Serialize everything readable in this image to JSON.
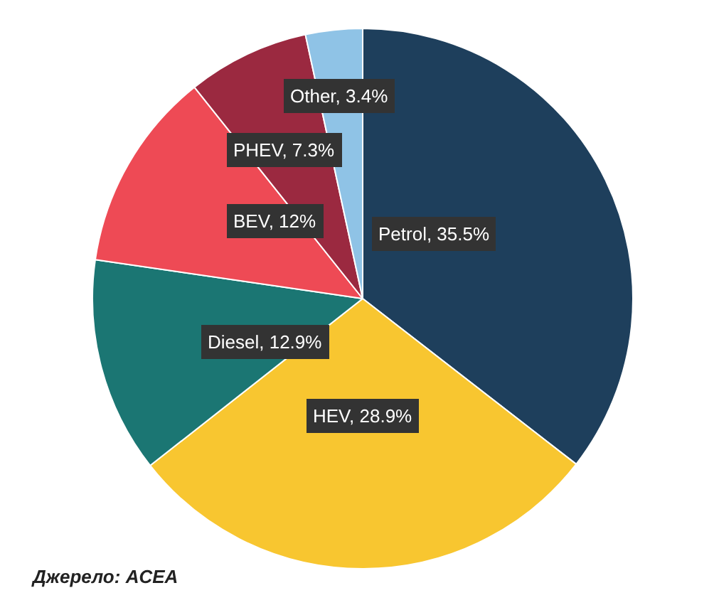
{
  "chart_data": {
    "type": "pie",
    "categories": [
      "Petrol",
      "HEV",
      "Diesel",
      "BEV",
      "PHEV",
      "Other"
    ],
    "values": [
      35.5,
      28.9,
      12.9,
      12,
      7.3,
      3.4
    ],
    "colors": [
      "#1e3f5c",
      "#f8c630",
      "#1b7673",
      "#ee4a55",
      "#9b2940",
      "#8fc3e6"
    ],
    "value_labels": [
      "35.5%",
      "28.9%",
      "12.9%",
      "12%",
      "7.3%",
      "3.4%"
    ],
    "legend": false,
    "annotations": [
      "Джерело: ACEA"
    ]
  }
}
